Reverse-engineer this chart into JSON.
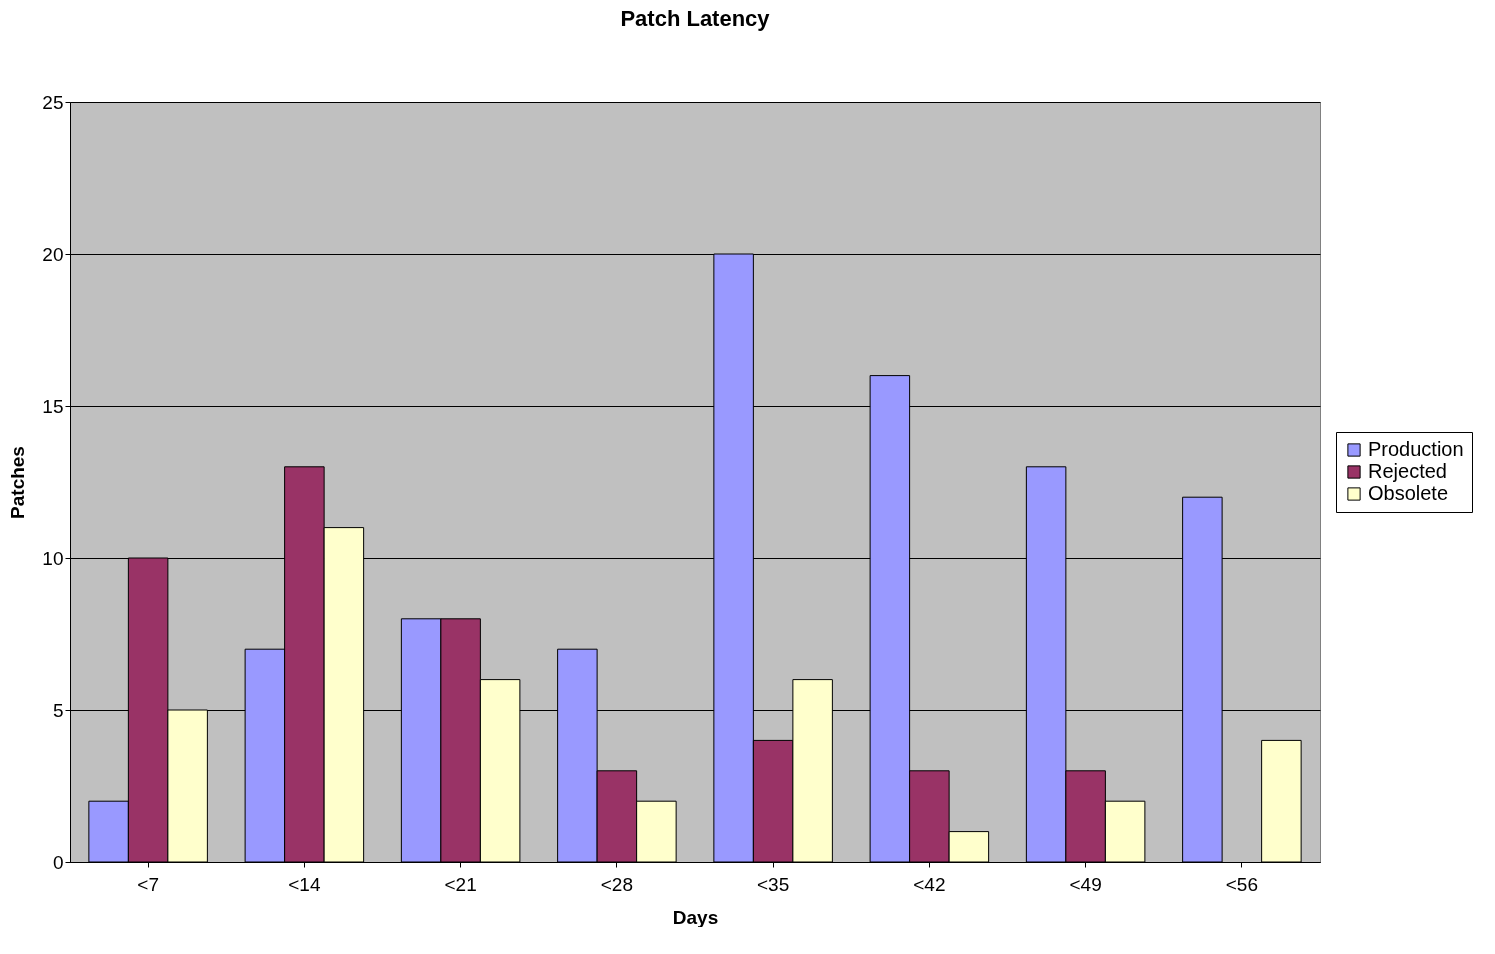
{
  "chart_data": {
    "type": "bar",
    "title": "Patch Latency",
    "xlabel": "Days",
    "ylabel": "Patches",
    "categories": [
      "<7",
      "<14",
      "<21",
      "<28",
      "<35",
      "<42",
      "<49",
      "<56"
    ],
    "series": [
      {
        "name": "Production",
        "color": "#9999ff",
        "values": [
          2,
          7,
          8,
          7,
          20,
          16,
          13,
          12
        ]
      },
      {
        "name": "Rejected",
        "color": "#993366",
        "values": [
          10,
          13,
          8,
          3,
          4,
          3,
          3,
          null
        ]
      },
      {
        "name": "Obsolete",
        "color": "#ffffcc",
        "values": [
          5,
          11,
          6,
          2,
          6,
          1,
          2,
          4
        ]
      }
    ],
    "ylim": [
      0,
      25
    ],
    "yticks": [
      0,
      5,
      10,
      15,
      20,
      25
    ],
    "grid": "y",
    "legend": "right"
  }
}
